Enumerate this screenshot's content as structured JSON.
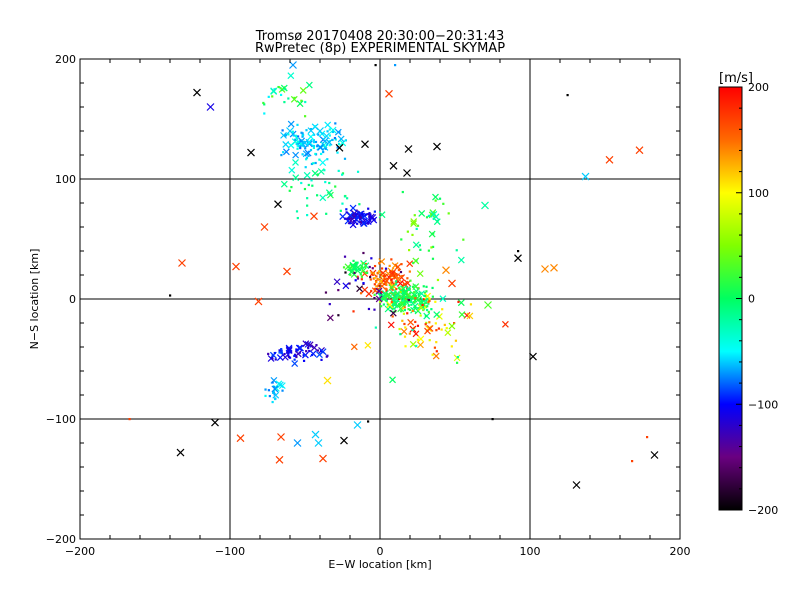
{
  "chart_data": {
    "type": "scatter",
    "title": "Tromsø 20170408 20:30:00−20:31:43",
    "subtitle": "RwPretec (8p) EXPERIMENTAL SKYMAP",
    "xlabel": "E−W location [km]",
    "ylabel": "N−S location [km]",
    "xlim": [
      -200,
      200
    ],
    "ylim": [
      -200,
      200
    ],
    "x_ticks": [
      -200,
      -100,
      0,
      100,
      200
    ],
    "y_ticks": [
      -200,
      -100,
      0,
      100,
      200
    ],
    "x_tick_labels": [
      "−200",
      "−100",
      "0",
      "100",
      "200"
    ],
    "y_tick_labels": [
      "−200",
      "−100",
      "0",
      "100",
      "200"
    ],
    "grid": true,
    "colorbar": {
      "label": "[m/s]",
      "min": -200,
      "max": 200,
      "ticks": [
        200,
        100,
        0,
        -100,
        -200
      ],
      "tick_labels": [
        "200",
        "100",
        "0",
        "−100",
        "−200"
      ],
      "position": "right"
    },
    "legend": {
      "cross": "×",
      "dot": "·"
    },
    "points": [
      [
        -122,
        172,
        -200,
        "x"
      ],
      [
        -113,
        160,
        -110,
        "x"
      ],
      [
        -86,
        122,
        -200,
        "x"
      ],
      [
        -68,
        79,
        -200,
        "x"
      ],
      [
        -27,
        126,
        -200,
        "x"
      ],
      [
        -10,
        129,
        -200,
        "x"
      ],
      [
        6,
        171,
        170,
        "x"
      ],
      [
        9,
        111,
        -200,
        "x"
      ],
      [
        18,
        105,
        -200,
        "x"
      ],
      [
        19,
        125,
        -200,
        "x"
      ],
      [
        38,
        127,
        -200,
        "x"
      ],
      [
        92,
        34,
        -200,
        "x"
      ],
      [
        102,
        -48,
        -200,
        "x"
      ],
      [
        -132,
        30,
        170,
        "x"
      ],
      [
        -96,
        27,
        170,
        "x"
      ],
      [
        -77,
        60,
        170,
        "x"
      ],
      [
        -44,
        69,
        170,
        "x"
      ],
      [
        -62,
        23,
        170,
        "x"
      ],
      [
        -81,
        -2,
        170,
        "x"
      ],
      [
        -93,
        -116,
        170,
        "x"
      ],
      [
        -66,
        -115,
        170,
        "x"
      ],
      [
        -67,
        -134,
        170,
        "x"
      ],
      [
        -38,
        -133,
        170,
        "x"
      ],
      [
        -24,
        -118,
        -200,
        "x"
      ],
      [
        -110,
        -103,
        -200,
        "x"
      ],
      [
        -133,
        -128,
        -200,
        "x"
      ],
      [
        -167,
        -100,
        170,
        "d"
      ],
      [
        153,
        116,
        170,
        "x"
      ],
      [
        173,
        124,
        170,
        "x"
      ],
      [
        131,
        -155,
        -200,
        "x"
      ],
      [
        183,
        -130,
        -200,
        "x"
      ],
      [
        125,
        170,
        -200,
        "d"
      ],
      [
        110,
        25,
        140,
        "x"
      ],
      [
        116,
        26,
        140,
        "x"
      ],
      [
        137,
        102,
        -60,
        "x"
      ],
      [
        -55,
        -120,
        -70,
        "x"
      ],
      [
        -43,
        -113,
        -60,
        "x"
      ],
      [
        -41,
        -120,
        -60,
        "x"
      ],
      [
        -15,
        -105,
        -60,
        "x"
      ],
      [
        -50,
        130,
        -60,
        "x"
      ],
      [
        -40,
        140,
        -60,
        "x"
      ],
      [
        -60,
        140,
        -60,
        "x"
      ],
      [
        -58,
        195,
        -70,
        "x"
      ],
      [
        44,
        24,
        140,
        "x"
      ],
      [
        48,
        13,
        170,
        "x"
      ],
      [
        72,
        -5,
        30,
        "x"
      ],
      [
        70,
        78,
        -20,
        "x"
      ],
      [
        -35,
        -68,
        110,
        "x"
      ],
      [
        -140,
        3,
        -200,
        "d"
      ],
      [
        75,
        -100,
        -200,
        "d"
      ],
      [
        -8,
        -102,
        -200,
        "d"
      ],
      [
        168,
        -135,
        170,
        "d"
      ],
      [
        178,
        -115,
        170,
        "d"
      ],
      [
        92,
        40,
        -200,
        "d"
      ],
      [
        10,
        195,
        -70,
        "d"
      ],
      [
        -3,
        195,
        -200,
        "d"
      ]
    ],
    "clusters": [
      {
        "center": [
          5,
          15
        ],
        "spread": [
          14,
          14
        ],
        "n": 130,
        "vmin": 120,
        "vmax": 200
      },
      {
        "center": [
          18,
          0
        ],
        "spread": [
          16,
          12
        ],
        "n": 160,
        "vmin": -20,
        "vmax": 30
      },
      {
        "center": [
          -15,
          68
        ],
        "spread": [
          10,
          6
        ],
        "n": 70,
        "vmin": -140,
        "vmax": -90
      },
      {
        "center": [
          -45,
          130
        ],
        "spread": [
          20,
          14
        ],
        "n": 110,
        "vmin": -80,
        "vmax": -40
      },
      {
        "center": [
          -55,
          -45
        ],
        "spread": [
          15,
          7
        ],
        "n": 60,
        "vmin": -130,
        "vmax": -80
      },
      {
        "center": [
          -70,
          -75
        ],
        "spread": [
          6,
          8
        ],
        "n": 20,
        "vmin": -80,
        "vmax": -40
      },
      {
        "center": [
          -15,
          25
        ],
        "spread": [
          8,
          6
        ],
        "n": 40,
        "vmin": -10,
        "vmax": 30
      },
      {
        "center": [
          -40,
          90
        ],
        "spread": [
          25,
          25
        ],
        "n": 40,
        "vmin": -40,
        "vmax": 20
      },
      {
        "center": [
          30,
          60
        ],
        "spread": [
          20,
          25
        ],
        "n": 40,
        "vmin": -30,
        "vmax": 60
      },
      {
        "center": [
          -60,
          170
        ],
        "spread": [
          25,
          15
        ],
        "n": 25,
        "vmin": -60,
        "vmax": 40
      },
      {
        "center": [
          20,
          -20
        ],
        "spread": [
          30,
          25
        ],
        "n": 50,
        "vmin": 60,
        "vmax": 200
      },
      {
        "center": [
          40,
          -20
        ],
        "spread": [
          40,
          40
        ],
        "n": 40,
        "vmin": -60,
        "vmax": 200
      },
      {
        "center": [
          -10,
          10
        ],
        "spread": [
          25,
          25
        ],
        "n": 30,
        "vmin": -200,
        "vmax": -100
      }
    ]
  }
}
